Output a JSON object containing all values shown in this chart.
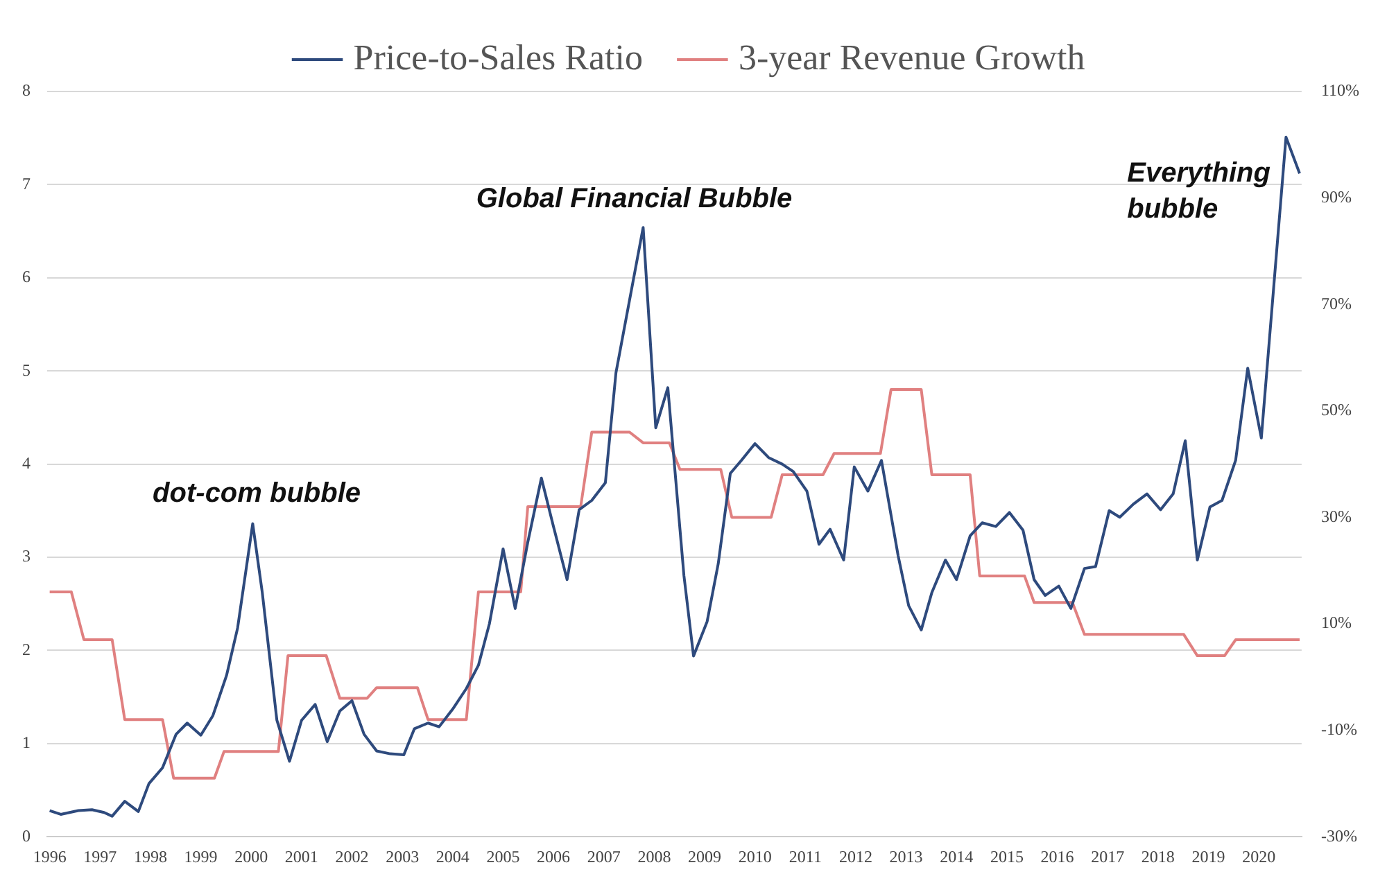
{
  "chart_data": {
    "type": "line",
    "legend": "top",
    "grid": "y",
    "marker": "none",
    "line_style": "solid",
    "xlim": [
      1995.95,
      2020.85
    ],
    "xticks": [
      1996,
      1997,
      1998,
      1999,
      2000,
      2001,
      2002,
      2003,
      2004,
      2005,
      2006,
      2007,
      2008,
      2009,
      2010,
      2011,
      2012,
      2013,
      2014,
      2015,
      2016,
      2017,
      2018,
      2019,
      2020
    ],
    "ylim": [
      0,
      8
    ],
    "yticks": [
      0,
      1,
      2,
      3,
      4,
      5,
      6,
      7,
      8
    ],
    "y2lim": [
      -30,
      110
    ],
    "y2ticks": [
      {
        "value": -30,
        "label": "-30%"
      },
      {
        "value": -10,
        "label": "-10%"
      },
      {
        "value": 10,
        "label": "10%"
      },
      {
        "value": 30,
        "label": "30%"
      },
      {
        "value": 50,
        "label": "50%"
      },
      {
        "value": 70,
        "label": "70%"
      },
      {
        "value": 90,
        "label": "90%"
      },
      {
        "value": 110,
        "label": "110%"
      }
    ],
    "series": [
      {
        "name": "Price-to-Sales Ratio",
        "color": "#2e4a7d",
        "x": [
          1996.0,
          1996.22,
          1996.57,
          1996.84,
          1997.08,
          1997.24,
          1997.49,
          1997.76,
          1997.97,
          1998.24,
          1998.51,
          1998.73,
          1999.0,
          1999.24,
          1999.51,
          1999.73,
          2000.03,
          2000.22,
          2000.51,
          2000.76,
          2001.0,
          2001.27,
          2001.51,
          2001.76,
          2002.0,
          2002.24,
          2002.49,
          2002.76,
          2003.03,
          2003.24,
          2003.51,
          2003.73,
          2004.0,
          2004.27,
          2004.51,
          2004.73,
          2005.0,
          2005.24,
          2005.49,
          2005.76,
          2006.0,
          2006.27,
          2006.51,
          2006.76,
          2007.03,
          2007.24,
          2007.78,
          2008.03,
          2008.27,
          2008.59,
          2008.78,
          2009.05,
          2009.27,
          2009.51,
          2009.73,
          2010.0,
          2010.27,
          2010.54,
          2010.76,
          2011.03,
          2011.27,
          2011.49,
          2011.76,
          2011.97,
          2012.24,
          2012.51,
          2012.84,
          2013.05,
          2013.3,
          2013.51,
          2013.78,
          2014.0,
          2014.27,
          2014.51,
          2014.78,
          2015.05,
          2015.32,
          2015.54,
          2015.76,
          2016.03,
          2016.27,
          2016.54,
          2016.76,
          2017.03,
          2017.24,
          2017.51,
          2017.78,
          2018.05,
          2018.3,
          2018.54,
          2018.78,
          2019.03,
          2019.27,
          2019.54,
          2019.78,
          2020.05,
          2020.54,
          2020.81
        ],
        "values": [
          0.28,
          0.24,
          0.28,
          0.29,
          0.26,
          0.22,
          0.38,
          0.27,
          0.57,
          0.74,
          1.1,
          1.22,
          1.09,
          1.3,
          1.73,
          2.24,
          3.36,
          2.62,
          1.25,
          0.81,
          1.25,
          1.42,
          1.02,
          1.35,
          1.46,
          1.1,
          0.92,
          0.89,
          0.88,
          1.16,
          1.22,
          1.18,
          1.37,
          1.59,
          1.84,
          2.29,
          3.09,
          2.45,
          3.16,
          3.85,
          3.33,
          2.76,
          3.51,
          3.61,
          3.8,
          4.98,
          6.54,
          4.39,
          4.82,
          2.8,
          1.94,
          2.31,
          2.93,
          3.9,
          4.04,
          4.22,
          4.07,
          4.0,
          3.92,
          3.71,
          3.14,
          3.3,
          2.97,
          3.97,
          3.71,
          4.04,
          3.02,
          2.48,
          2.22,
          2.62,
          2.97,
          2.76,
          3.23,
          3.37,
          3.33,
          3.48,
          3.29,
          2.76,
          2.59,
          2.69,
          2.45,
          2.88,
          2.9,
          3.5,
          3.43,
          3.57,
          3.68,
          3.51,
          3.68,
          4.25,
          2.97,
          3.54,
          3.61,
          4.04,
          5.03,
          4.28,
          7.51,
          7.12
        ]
      },
      {
        "name": "3-year Revenue Growth",
        "color": "#e08080",
        "axis": "y2",
        "x": [
          1996.0,
          1996.43,
          1996.68,
          1997.24,
          1997.49,
          1998.24,
          1998.46,
          1999.27,
          1999.46,
          2000.54,
          2000.73,
          2001.49,
          2001.76,
          2002.3,
          2002.49,
          2003.3,
          2003.51,
          2004.27,
          2004.51,
          2005.35,
          2005.49,
          2006.54,
          2006.76,
          2007.51,
          2007.78,
          2008.3,
          2008.51,
          2009.32,
          2009.54,
          2010.32,
          2010.54,
          2011.35,
          2011.57,
          2012.49,
          2012.7,
          2013.3,
          2013.51,
          2014.27,
          2014.46,
          2015.35,
          2015.54,
          2016.3,
          2016.54,
          2018.51,
          2018.78,
          2019.32,
          2019.54,
          2020.81
        ],
        "values": [
          16,
          16,
          7,
          7,
          -8,
          -8,
          -19,
          -19,
          -14,
          -14,
          4,
          4,
          -4,
          -4,
          -2,
          -2,
          -8,
          -8,
          16,
          16,
          32,
          32,
          46,
          46,
          44,
          44,
          39,
          39,
          30,
          30,
          38,
          38,
          42,
          42,
          54,
          54,
          38,
          38,
          19,
          19,
          14,
          14,
          8,
          8,
          4,
          4,
          7,
          7
        ]
      }
    ],
    "annotations": [
      "dot-com bubble",
      "Global Financial Bubble",
      "Everything bubble"
    ]
  }
}
